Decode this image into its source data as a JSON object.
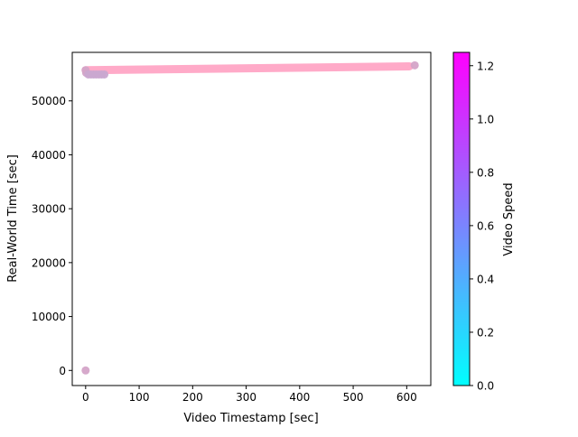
{
  "chart_data": {
    "type": "scatter",
    "xlabel": "Video Timestamp [sec]",
    "ylabel": "Real-World Time [sec]",
    "xlim": [
      -25,
      645
    ],
    "ylim": [
      -2800,
      59000
    ],
    "xticks": [
      0,
      100,
      200,
      300,
      400,
      500,
      600
    ],
    "yticks": [
      0,
      10000,
      20000,
      30000,
      40000,
      50000
    ],
    "grid": false,
    "colorbar": {
      "label": "Video Speed",
      "range": [
        0.0,
        1.25
      ],
      "ticks": [
        0.0,
        0.2,
        0.4,
        0.6,
        0.8,
        1.0,
        1.2
      ],
      "tick_labels": [
        "0.0",
        "0.2",
        "0.4",
        "0.6",
        "0.8",
        "1.0",
        "1.2"
      ],
      "colormap": "cool"
    },
    "series": [
      {
        "marker": "circle",
        "points": [
          {
            "x": 0,
            "y": 0,
            "speed": 0.85
          },
          {
            "x": 1,
            "y": 55200,
            "speed": 0.8
          },
          {
            "x": 0,
            "y": 55700,
            "speed": 0.8
          },
          {
            "x": 5,
            "y": 54900,
            "speed": 0.75
          },
          {
            "x": 10,
            "y": 54900,
            "speed": 0.75
          },
          {
            "x": 15,
            "y": 54900,
            "speed": 0.75
          },
          {
            "x": 20,
            "y": 54900,
            "speed": 0.75
          },
          {
            "x": 25,
            "y": 54900,
            "speed": 0.75
          },
          {
            "x": 30,
            "y": 54900,
            "speed": 0.75
          },
          {
            "x": 35,
            "y": 54900,
            "speed": 0.75
          },
          {
            "x": 615,
            "y": 56600,
            "speed": 0.8
          }
        ],
        "line": {
          "x_start": 0,
          "y_start": 55700,
          "x_end": 605,
          "y_end": 56400,
          "speed": 0.95
        }
      }
    ]
  }
}
